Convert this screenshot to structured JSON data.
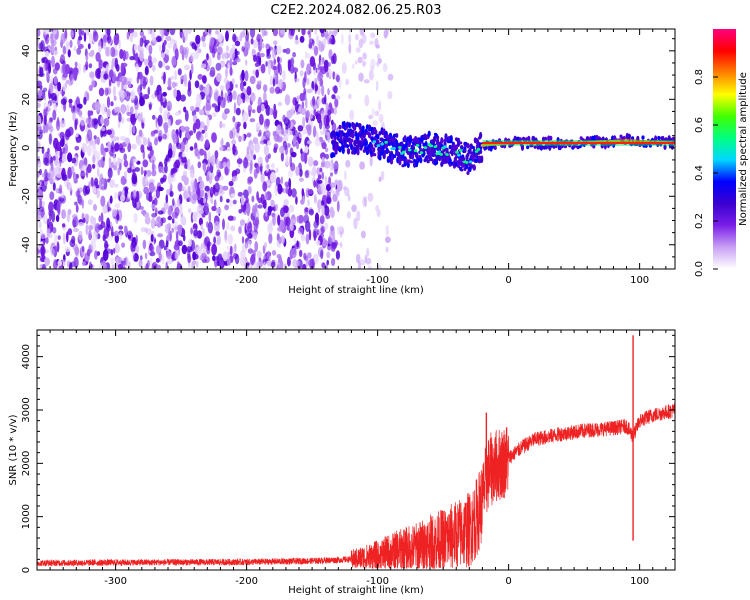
{
  "title": "C2E2.2024.082.06.25.R03",
  "chart_data": [
    {
      "type": "heatmap",
      "xlabel": "Height of straight line (km)",
      "ylabel": "Frequency (Hz)",
      "xlim": [
        -360,
        127
      ],
      "ylim": [
        -50,
        49
      ],
      "xticks": [
        -300,
        -200,
        -100,
        0,
        100
      ],
      "yticks": [
        -40,
        -20,
        0,
        20,
        40
      ],
      "colorbar": {
        "label": "Normalized spectral amplitude",
        "range": [
          0.0,
          1.0
        ],
        "ticks": [
          0.0,
          0.2,
          0.4,
          0.6,
          0.8
        ],
        "colormap": [
          "#ffffff",
          "#c9a0f5",
          "#7a1fe8",
          "#3a00d0",
          "#0000ff",
          "#00d8ff",
          "#00ff80",
          "#40ff00",
          "#ffff00",
          "#ff8000",
          "#ff0000",
          "#ff0080"
        ]
      },
      "features": {
        "noise_region_end_km": -130,
        "trace_points": [
          {
            "x": -130,
            "y": 5
          },
          {
            "x": -100,
            "y": 2
          },
          {
            "x": -80,
            "y": -2
          },
          {
            "x": -60,
            "y": 0
          },
          {
            "x": -40,
            "y": -2
          },
          {
            "x": -30,
            "y": -5
          },
          {
            "x": -20,
            "y": 1
          },
          {
            "x": 0,
            "y": 2
          },
          {
            "x": 50,
            "y": 2
          },
          {
            "x": 90,
            "y": 3
          },
          {
            "x": 127,
            "y": 2
          }
        ]
      }
    },
    {
      "type": "line",
      "xlabel": "Height of straight line (km)",
      "ylabel": "SNR (10 * v/v)",
      "xlim": [
        -360,
        127
      ],
      "ylim": [
        0,
        4500
      ],
      "xticks": [
        -300,
        -200,
        -100,
        0,
        100
      ],
      "yticks": [
        0,
        1000,
        2000,
        3000,
        4000
      ],
      "color": "#ee2222",
      "series": [
        {
          "x": [
            -360,
            -300,
            -200,
            -150,
            -120,
            -100,
            -90,
            -80,
            -70,
            -60,
            -50,
            -40,
            -30,
            -25,
            -20,
            -18,
            -15,
            -10,
            -5,
            0,
            10,
            20,
            40,
            60,
            80,
            90,
            95,
            100,
            110,
            127
          ],
          "y": [
            130,
            140,
            150,
            170,
            200,
            260,
            330,
            380,
            420,
            500,
            560,
            650,
            760,
            950,
            1300,
            1600,
            1850,
            1950,
            2000,
            2100,
            2300,
            2450,
            2550,
            2620,
            2660,
            2700,
            2500,
            2800,
            2900,
            3000
          ]
        }
      ],
      "annotations": [
        {
          "x": -17,
          "y": 2950
        },
        {
          "x": 95,
          "y": 4400
        },
        {
          "x": 95,
          "y": 550
        }
      ]
    }
  ]
}
